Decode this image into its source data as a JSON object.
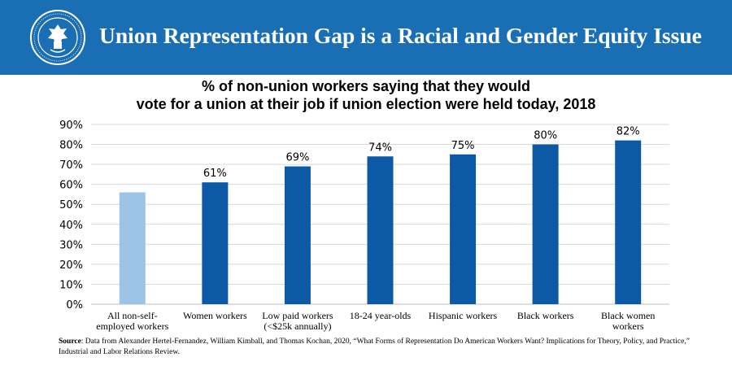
{
  "banner": {
    "title": "Union Representation Gap is a Racial and Gender Equity Issue",
    "seal_icon": "department-of-labor-seal",
    "background": "#1a6fb4"
  },
  "chart_data": {
    "type": "bar",
    "title_line1": "% of non-union workers saying that they would",
    "title_line2": "vote for a union at their job if union election were held today, 2018",
    "categories": [
      [
        "All non-self-",
        "employed workers"
      ],
      [
        "Women workers"
      ],
      [
        "Low paid workers",
        "(<$25k annually)"
      ],
      [
        "18-24 year-olds"
      ],
      [
        "Hispanic workers"
      ],
      [
        "Black workers"
      ],
      [
        "Black women",
        "workers"
      ]
    ],
    "values": [
      56,
      61,
      69,
      74,
      75,
      80,
      82
    ],
    "data_labels": [
      "",
      "61%",
      "69%",
      "74%",
      "75%",
      "80%",
      "82%"
    ],
    "bar_colors": [
      "#9dc3e6",
      "#0c5aa6",
      "#0c5aa6",
      "#0c5aa6",
      "#0c5aa6",
      "#0c5aa6",
      "#0c5aa6"
    ],
    "yticks": [
      "0%",
      "10%",
      "20%",
      "30%",
      "40%",
      "50%",
      "60%",
      "70%",
      "80%",
      "90%"
    ],
    "ylim": [
      0,
      90
    ],
    "xlabel": "",
    "ylabel": "",
    "grid": true
  },
  "source": {
    "label": "Source",
    "text": ": Data from Alexander Hertel-Fernandez, William Kimball, and Thomas Kochan, 2020, “What Forms of Representation Do American Workers Want? Implications for Theory, Policy, and Practice,” Industrial and Labor Relations Review."
  }
}
